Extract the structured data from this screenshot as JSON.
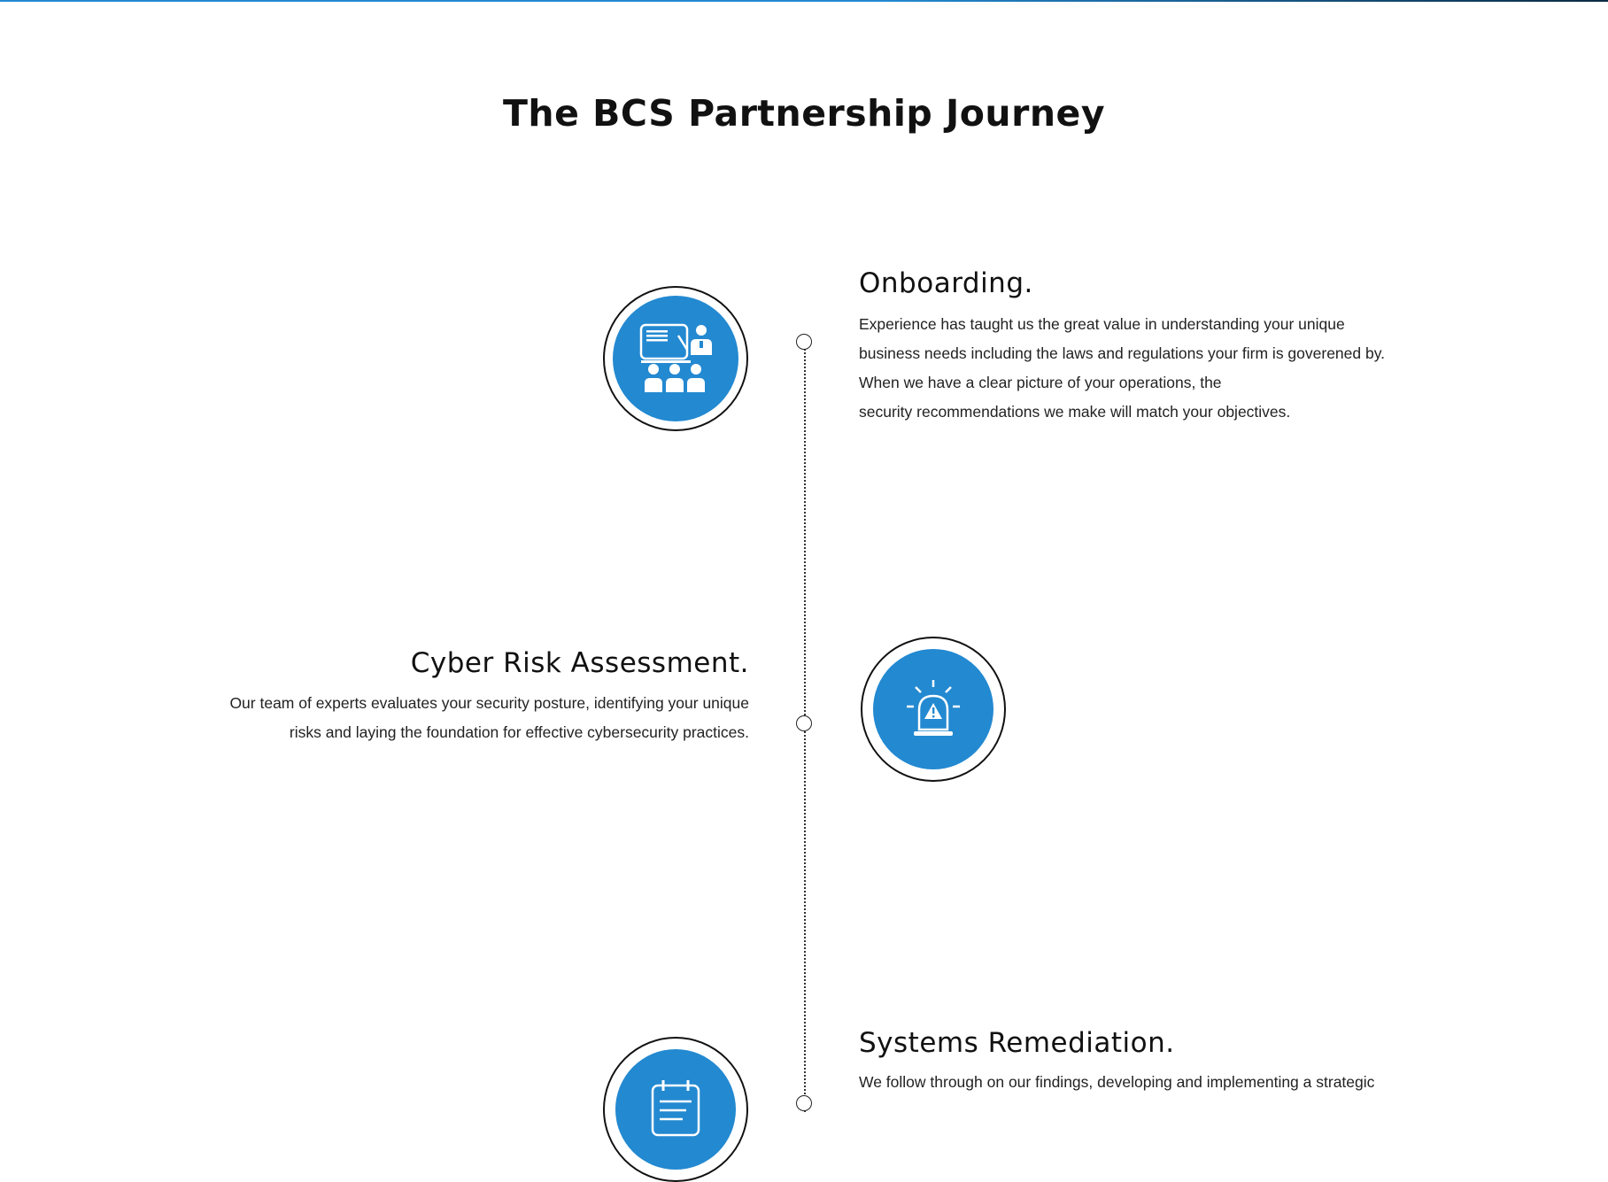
{
  "page": {
    "title": "The BCS Partnership Journey"
  },
  "colors": {
    "accent": "#2389d1",
    "text": "#222222"
  },
  "steps": [
    {
      "title": "Onboarding.",
      "icon": "presentation-icon",
      "lines": [
        "Experience has taught us the great value in understanding your unique",
        "business needs including the laws and regulations your firm is goverened by.",
        "When we have a clear picture of your operations, the",
        "security recommendations we make will match your objectives."
      ]
    },
    {
      "title": "Cyber Risk Assessment.",
      "icon": "alarm-siren-icon",
      "lines": [
        "Our team of experts evaluates your security posture, identifying your unique",
        "risks and laying the foundation for effective cybersecurity practices."
      ]
    },
    {
      "title": "Systems Remediation.",
      "icon": "calendar-checklist-icon",
      "lines": [
        "We follow through on our findings, developing and implementing a strategic"
      ]
    }
  ]
}
